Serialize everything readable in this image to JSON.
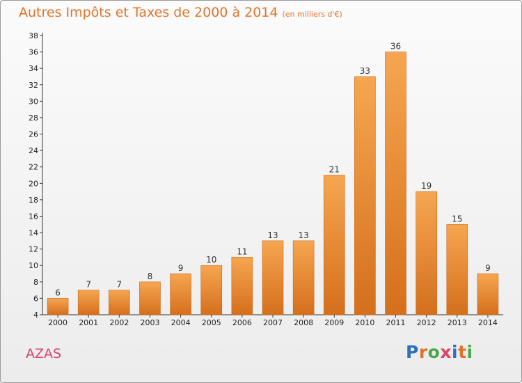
{
  "title": {
    "main": "Autres Impôts et Taxes de 2000 à 2014",
    "unit": "(en milliers d'€)"
  },
  "commune": "AZAS",
  "logo": {
    "text": "Proxiti",
    "letters": [
      "P",
      "r",
      "o",
      "x",
      "i",
      "t",
      "i"
    ]
  },
  "colors": {
    "bar_top": "#f6a650",
    "bar_bottom": "#d56f1c",
    "title": "#e0742a",
    "commune": "#d9446b"
  },
  "chart_data": {
    "type": "bar",
    "title": "Autres Impôts et Taxes de 2000 à 2014",
    "subtitle": "(en milliers d'€)",
    "categories": [
      "2000",
      "2001",
      "2002",
      "2003",
      "2004",
      "2005",
      "2006",
      "2007",
      "2008",
      "2009",
      "2010",
      "2011",
      "2012",
      "2013",
      "2014"
    ],
    "values": [
      6,
      7,
      7,
      8,
      9,
      10,
      11,
      13,
      13,
      21,
      33,
      36,
      19,
      15,
      9
    ],
    "xlabel": "",
    "ylabel": "",
    "ylim": [
      4,
      38
    ],
    "yticks": [
      4,
      6,
      8,
      10,
      12,
      14,
      16,
      18,
      20,
      22,
      24,
      26,
      28,
      30,
      32,
      34,
      36,
      38
    ],
    "grid": false,
    "legend": "none",
    "data_labels": true
  }
}
